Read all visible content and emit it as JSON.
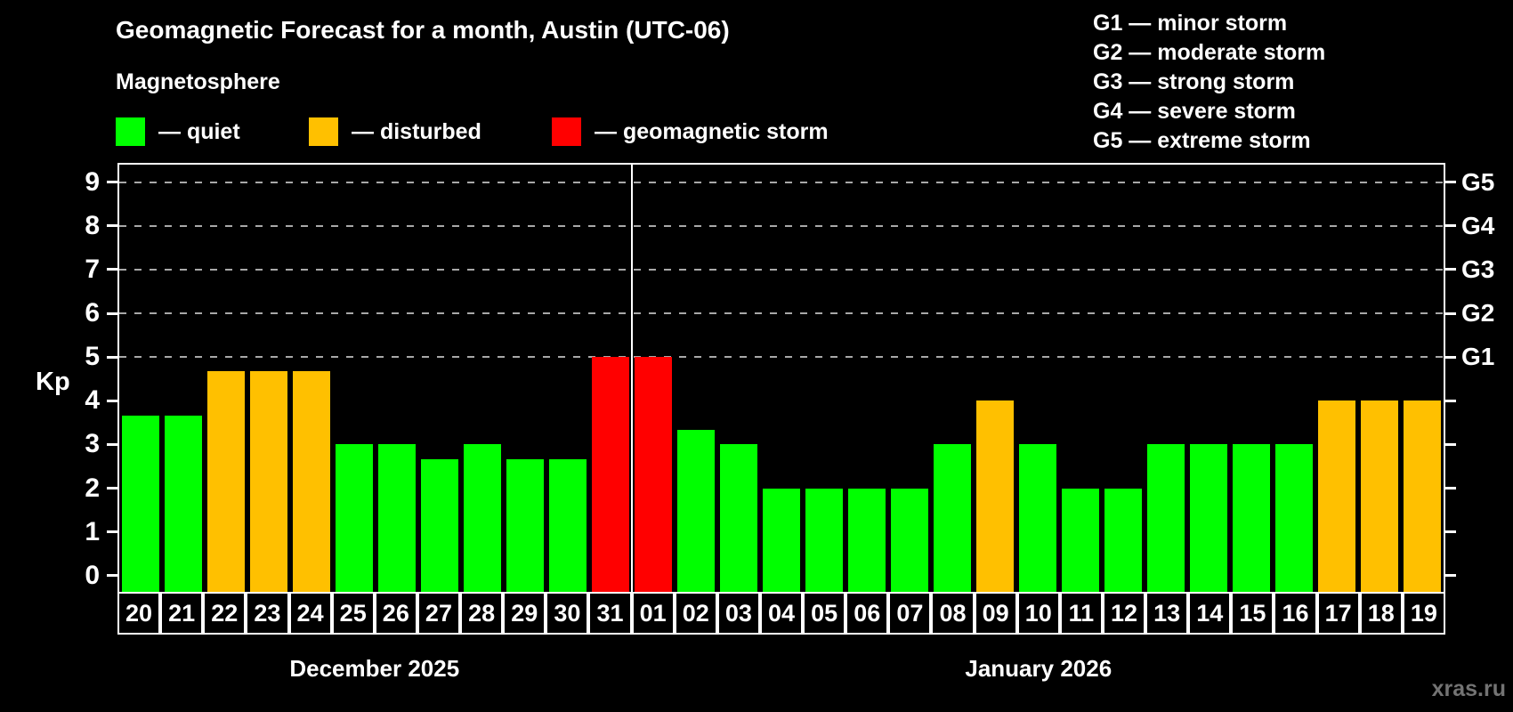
{
  "title": "Geomagnetic Forecast for a month, Austin (UTC-06)",
  "subtitle": "Magnetosphere",
  "legend": {
    "items": [
      {
        "key": "quiet",
        "label": "— quiet",
        "color": "#00ff00"
      },
      {
        "key": "disturbed",
        "label": "— disturbed",
        "color": "#ffc000"
      },
      {
        "key": "storm",
        "label": "— geomagnetic storm",
        "color": "#ff0000"
      }
    ]
  },
  "g_legend": [
    "G1 — minor storm",
    "G2 — moderate storm",
    "G3 — strong storm",
    "G4 — severe storm",
    "G5 — extreme storm"
  ],
  "watermark": "xras.ru",
  "colors": {
    "quiet": "#00ff00",
    "disturbed": "#ffc000",
    "storm": "#ff0000",
    "background": "#000000",
    "axis": "#ffffff",
    "gridline": "#a8a8a8",
    "watermark": "#737373"
  },
  "chart_data": {
    "type": "bar",
    "title": "Geomagnetic Forecast for a month, Austin (UTC-06)",
    "ylabel": "Kp",
    "ylim": [
      -0.37,
      9.4
    ],
    "y_ticks": [
      0,
      1,
      2,
      3,
      4,
      5,
      6,
      7,
      8,
      9
    ],
    "gridlines_at": [
      5,
      6,
      7,
      8,
      9
    ],
    "grid": true,
    "legend_position": "top",
    "right_axis_labels": [
      {
        "kp": 5,
        "label": "G1"
      },
      {
        "kp": 6,
        "label": "G2"
      },
      {
        "kp": 7,
        "label": "G3"
      },
      {
        "kp": 8,
        "label": "G4"
      },
      {
        "kp": 9,
        "label": "G5"
      }
    ],
    "months": [
      {
        "label": "December 2025",
        "days": 12
      },
      {
        "label": "January 2026",
        "days": 19
      }
    ],
    "month_separator_after_index": 11,
    "bars": [
      {
        "day": "20",
        "value": 3.67,
        "status": "quiet"
      },
      {
        "day": "21",
        "value": 3.67,
        "status": "quiet"
      },
      {
        "day": "22",
        "value": 4.67,
        "status": "disturbed"
      },
      {
        "day": "23",
        "value": 4.67,
        "status": "disturbed"
      },
      {
        "day": "24",
        "value": 4.67,
        "status": "disturbed"
      },
      {
        "day": "25",
        "value": 3.0,
        "status": "quiet"
      },
      {
        "day": "26",
        "value": 3.0,
        "status": "quiet"
      },
      {
        "day": "27",
        "value": 2.67,
        "status": "quiet"
      },
      {
        "day": "28",
        "value": 3.0,
        "status": "quiet"
      },
      {
        "day": "29",
        "value": 2.67,
        "status": "quiet"
      },
      {
        "day": "30",
        "value": 2.67,
        "status": "quiet"
      },
      {
        "day": "31",
        "value": 5.0,
        "status": "storm"
      },
      {
        "day": "01",
        "value": 5.0,
        "status": "storm"
      },
      {
        "day": "02",
        "value": 3.33,
        "status": "quiet"
      },
      {
        "day": "03",
        "value": 3.0,
        "status": "quiet"
      },
      {
        "day": "04",
        "value": 2.0,
        "status": "quiet"
      },
      {
        "day": "05",
        "value": 2.0,
        "status": "quiet"
      },
      {
        "day": "06",
        "value": 2.0,
        "status": "quiet"
      },
      {
        "day": "07",
        "value": 2.0,
        "status": "quiet"
      },
      {
        "day": "08",
        "value": 3.0,
        "status": "quiet"
      },
      {
        "day": "09",
        "value": 4.0,
        "status": "disturbed"
      },
      {
        "day": "10",
        "value": 3.0,
        "status": "quiet"
      },
      {
        "day": "11",
        "value": 2.0,
        "status": "quiet"
      },
      {
        "day": "12",
        "value": 2.0,
        "status": "quiet"
      },
      {
        "day": "13",
        "value": 3.0,
        "status": "quiet"
      },
      {
        "day": "14",
        "value": 3.0,
        "status": "quiet"
      },
      {
        "day": "15",
        "value": 3.0,
        "status": "quiet"
      },
      {
        "day": "16",
        "value": 3.0,
        "status": "quiet"
      },
      {
        "day": "17",
        "value": 4.0,
        "status": "disturbed"
      },
      {
        "day": "18",
        "value": 4.0,
        "status": "disturbed"
      },
      {
        "day": "19",
        "value": 4.0,
        "status": "disturbed"
      }
    ]
  }
}
